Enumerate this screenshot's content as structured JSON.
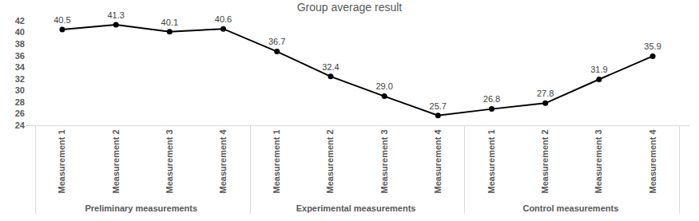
{
  "chart_data": {
    "type": "line",
    "title": "Group average result",
    "groups": [
      "Preliminary measurements",
      "Preliminary measurements",
      "Preliminary measurements",
      "Preliminary measurements",
      "Experimental measurements",
      "Experimental measurements",
      "Experimental measurements",
      "Experimental measurements",
      "Control measurements",
      "Control measurements",
      "Control measurements",
      "Control measurements"
    ],
    "categories": [
      "Measurement 1",
      "Measurement 2",
      "Measurement 3",
      "Measurement 4",
      "Measurement 1",
      "Measurement 2",
      "Measurement 3",
      "Measurement 4",
      "Measurement 1",
      "Measurement 2",
      "Measurement 3",
      "Measurement 4"
    ],
    "values": [
      40.5,
      41.3,
      40.1,
      40.6,
      36.7,
      32.4,
      29.0,
      25.7,
      26.8,
      27.8,
      31.9,
      35.9
    ],
    "value_labels": [
      "40.5",
      "41.3",
      "40.1",
      "40.6",
      "36.7",
      "32.4",
      "29.0",
      "25.7",
      "26.8",
      "27.8",
      "31.9",
      "35.9"
    ],
    "color": "#000000",
    "marker": "circle",
    "line_style": "solid",
    "data_labels": true,
    "grid": false,
    "ylim": [
      24,
      42
    ],
    "yticks": [
      24,
      26,
      28,
      30,
      32,
      34,
      36,
      38,
      40,
      42
    ]
  }
}
